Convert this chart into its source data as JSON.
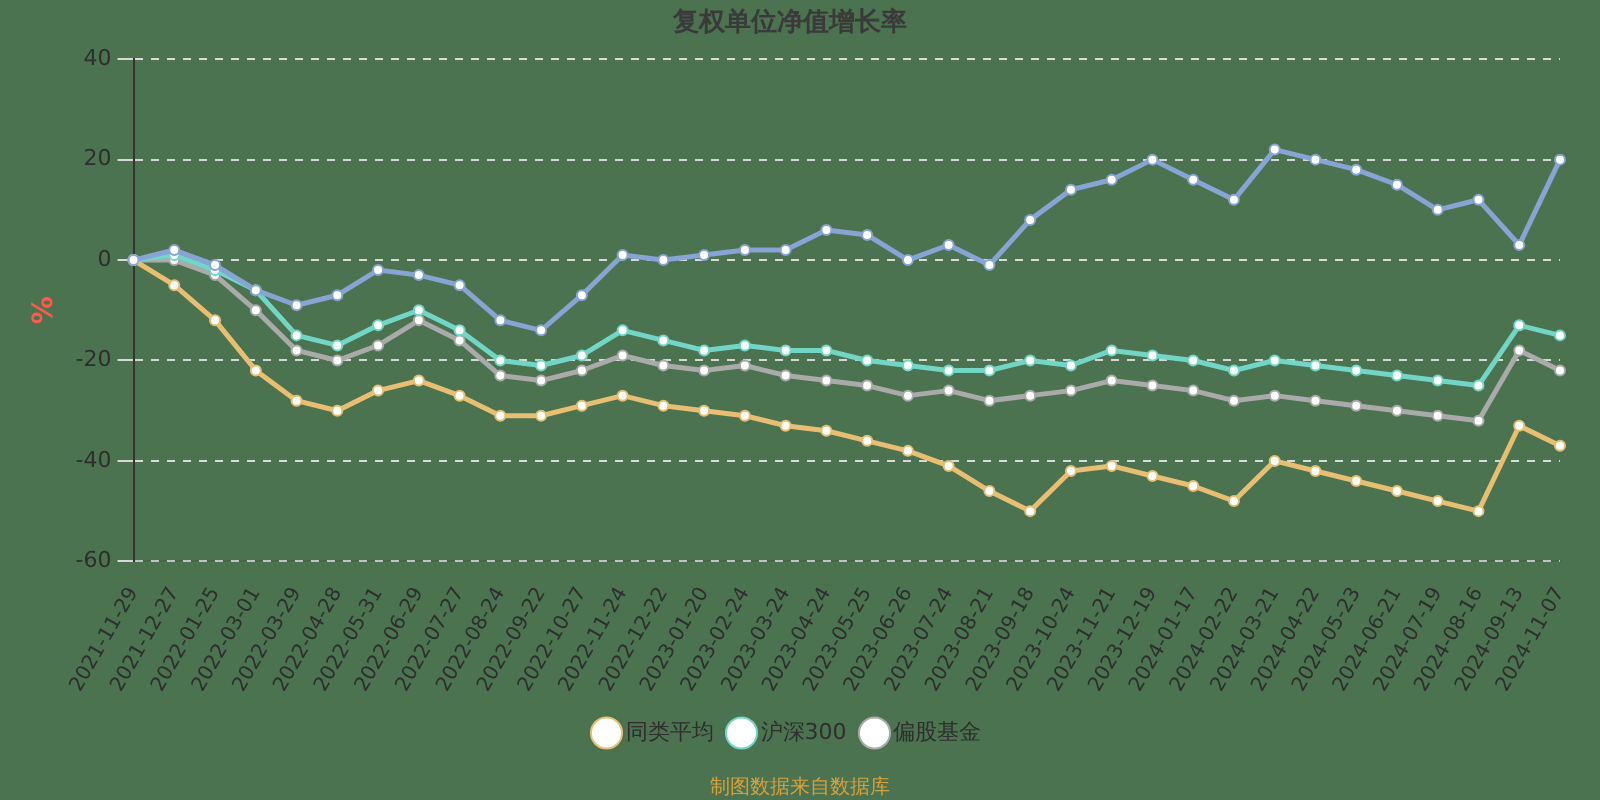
{
  "chart_data": {
    "type": "line",
    "title": "复权单位净值增长率",
    "ylabel": "%",
    "categories": [
      "2021-11-29",
      "2021-12-27",
      "2022-01-25",
      "2022-03-01",
      "2022-03-29",
      "2022-04-28",
      "2022-05-31",
      "2022-06-29",
      "2022-07-27",
      "2022-08-24",
      "2022-09-22",
      "2022-10-27",
      "2022-11-24",
      "2022-12-22",
      "2023-01-20",
      "2023-02-24",
      "2023-03-24",
      "2023-04-24",
      "2023-05-25",
      "2023-06-26",
      "2023-07-24",
      "2023-08-21",
      "2023-09-18",
      "2023-10-24",
      "2023-11-21",
      "2023-12-19",
      "2024-01-17",
      "2024-02-22",
      "2024-03-21",
      "2024-04-22",
      "2024-05-23",
      "2024-06-21",
      "2024-07-19",
      "2024-08-16",
      "2024-09-13",
      "2024-11-07"
    ],
    "series": [
      {
        "color": "#86a4d4",
        "values": [
          0,
          2,
          -1,
          -6,
          -9,
          -7,
          -2,
          -3,
          -5,
          -12,
          -14,
          -7,
          1,
          0,
          1,
          2,
          2,
          6,
          5,
          0,
          3,
          -1,
          8,
          14,
          16,
          20,
          16,
          12,
          22,
          20,
          18,
          15,
          10,
          12,
          3,
          20
        ]
      },
      {
        "name": "同类平均",
        "color": "#e8bf72",
        "values": [
          0,
          -5,
          -12,
          -22,
          -28,
          -30,
          -26,
          -24,
          -27,
          -31,
          -31,
          -29,
          -27,
          -29,
          -30,
          -31,
          -33,
          -34,
          -36,
          -38,
          -41,
          -46,
          -50,
          -42,
          -41,
          -43,
          -45,
          -48,
          -40,
          -42,
          -44,
          -46,
          -48,
          -50,
          -33,
          -37
        ]
      },
      {
        "name": "沪深300",
        "color": "#72d6c6",
        "values": [
          0,
          1,
          -2,
          -6,
          -15,
          -17,
          -13,
          -10,
          -14,
          -20,
          -21,
          -19,
          -14,
          -16,
          -18,
          -17,
          -18,
          -18,
          -20,
          -21,
          -22,
          -22,
          -20,
          -21,
          -18,
          -19,
          -20,
          -22,
          -20,
          -21,
          -22,
          -23,
          -24,
          -25,
          -13,
          -15
        ]
      },
      {
        "name": "偏股基金",
        "color": "#aaaaaa",
        "values": [
          0,
          0,
          -3,
          -10,
          -18,
          -20,
          -17,
          -12,
          -16,
          -23,
          -24,
          -22,
          -19,
          -21,
          -22,
          -21,
          -23,
          -24,
          -25,
          -27,
          -26,
          -28,
          -27,
          -26,
          -24,
          -25,
          -26,
          -28,
          -27,
          -28,
          -29,
          -30,
          -31,
          -32,
          -18,
          -22
        ]
      }
    ],
    "ylim": [
      -60,
      40
    ],
    "yticks": [
      -60,
      -40,
      -20,
      0,
      20,
      40
    ],
    "grid": "y",
    "legend": "bottom",
    "marker": "circle",
    "line_style": "solid",
    "annotations": [
      "制图数据来自数据库"
    ]
  }
}
